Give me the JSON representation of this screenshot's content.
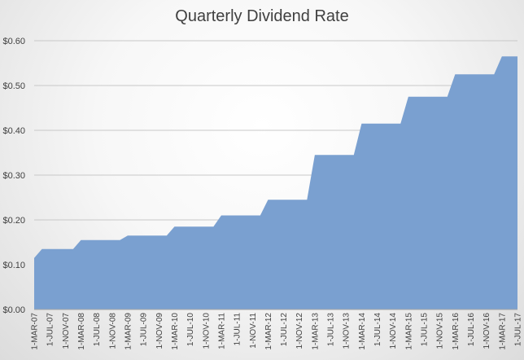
{
  "chart_data": {
    "type": "area",
    "title": "Quarterly Dividend Rate",
    "xlabel": "",
    "ylabel": "",
    "ylim": [
      0,
      0.6
    ],
    "yticks": [
      "$0.00",
      "$0.10",
      "$0.20",
      "$0.30",
      "$0.40",
      "$0.50",
      "$0.60"
    ],
    "grid": true,
    "legend": "none",
    "fill_color": "#7aa0d0",
    "categories": [
      "1-MAR-07",
      "",
      "1-JUL-07",
      "",
      "1-NOV-07",
      "",
      "1-MAR-08",
      "",
      "1-JUL-08",
      "",
      "1-NOV-08",
      "",
      "1-MAR-09",
      "",
      "1-JUL-09",
      "",
      "1-NOV-09",
      "",
      "1-MAR-10",
      "",
      "1-JUL-10",
      "",
      "1-NOV-10",
      "",
      "1-MAR-11",
      "",
      "1-JUL-11",
      "",
      "1-NOV-11",
      "",
      "1-MAR-12",
      "",
      "1-JUL-12",
      "",
      "1-NOV-12",
      "",
      "1-MAR-13",
      "",
      "1-JUL-13",
      "",
      "1-NOV-13",
      "",
      "1-MAR-14",
      "",
      "1-JUL-14",
      "",
      "1-NOV-14",
      "",
      "1-MAR-15",
      "",
      "1-JUL-15",
      "",
      "1-NOV-15",
      "",
      "1-MAR-16",
      "",
      "1-JUL-16",
      "",
      "1-NOV-16",
      "",
      "1-MAR-17",
      "",
      "1-JUL-17"
    ],
    "values": [
      0.115,
      0.135,
      0.135,
      0.135,
      0.135,
      0.135,
      0.155,
      0.155,
      0.155,
      0.155,
      0.155,
      0.155,
      0.165,
      0.165,
      0.165,
      0.165,
      0.165,
      0.165,
      0.185,
      0.185,
      0.185,
      0.185,
      0.185,
      0.185,
      0.21,
      0.21,
      0.21,
      0.21,
      0.21,
      0.21,
      0.245,
      0.245,
      0.245,
      0.245,
      0.245,
      0.245,
      0.345,
      0.345,
      0.345,
      0.345,
      0.345,
      0.345,
      0.415,
      0.415,
      0.415,
      0.415,
      0.415,
      0.415,
      0.475,
      0.475,
      0.475,
      0.475,
      0.475,
      0.475,
      0.525,
      0.525,
      0.525,
      0.525,
      0.525,
      0.525,
      0.565,
      0.565,
      0.565
    ]
  }
}
